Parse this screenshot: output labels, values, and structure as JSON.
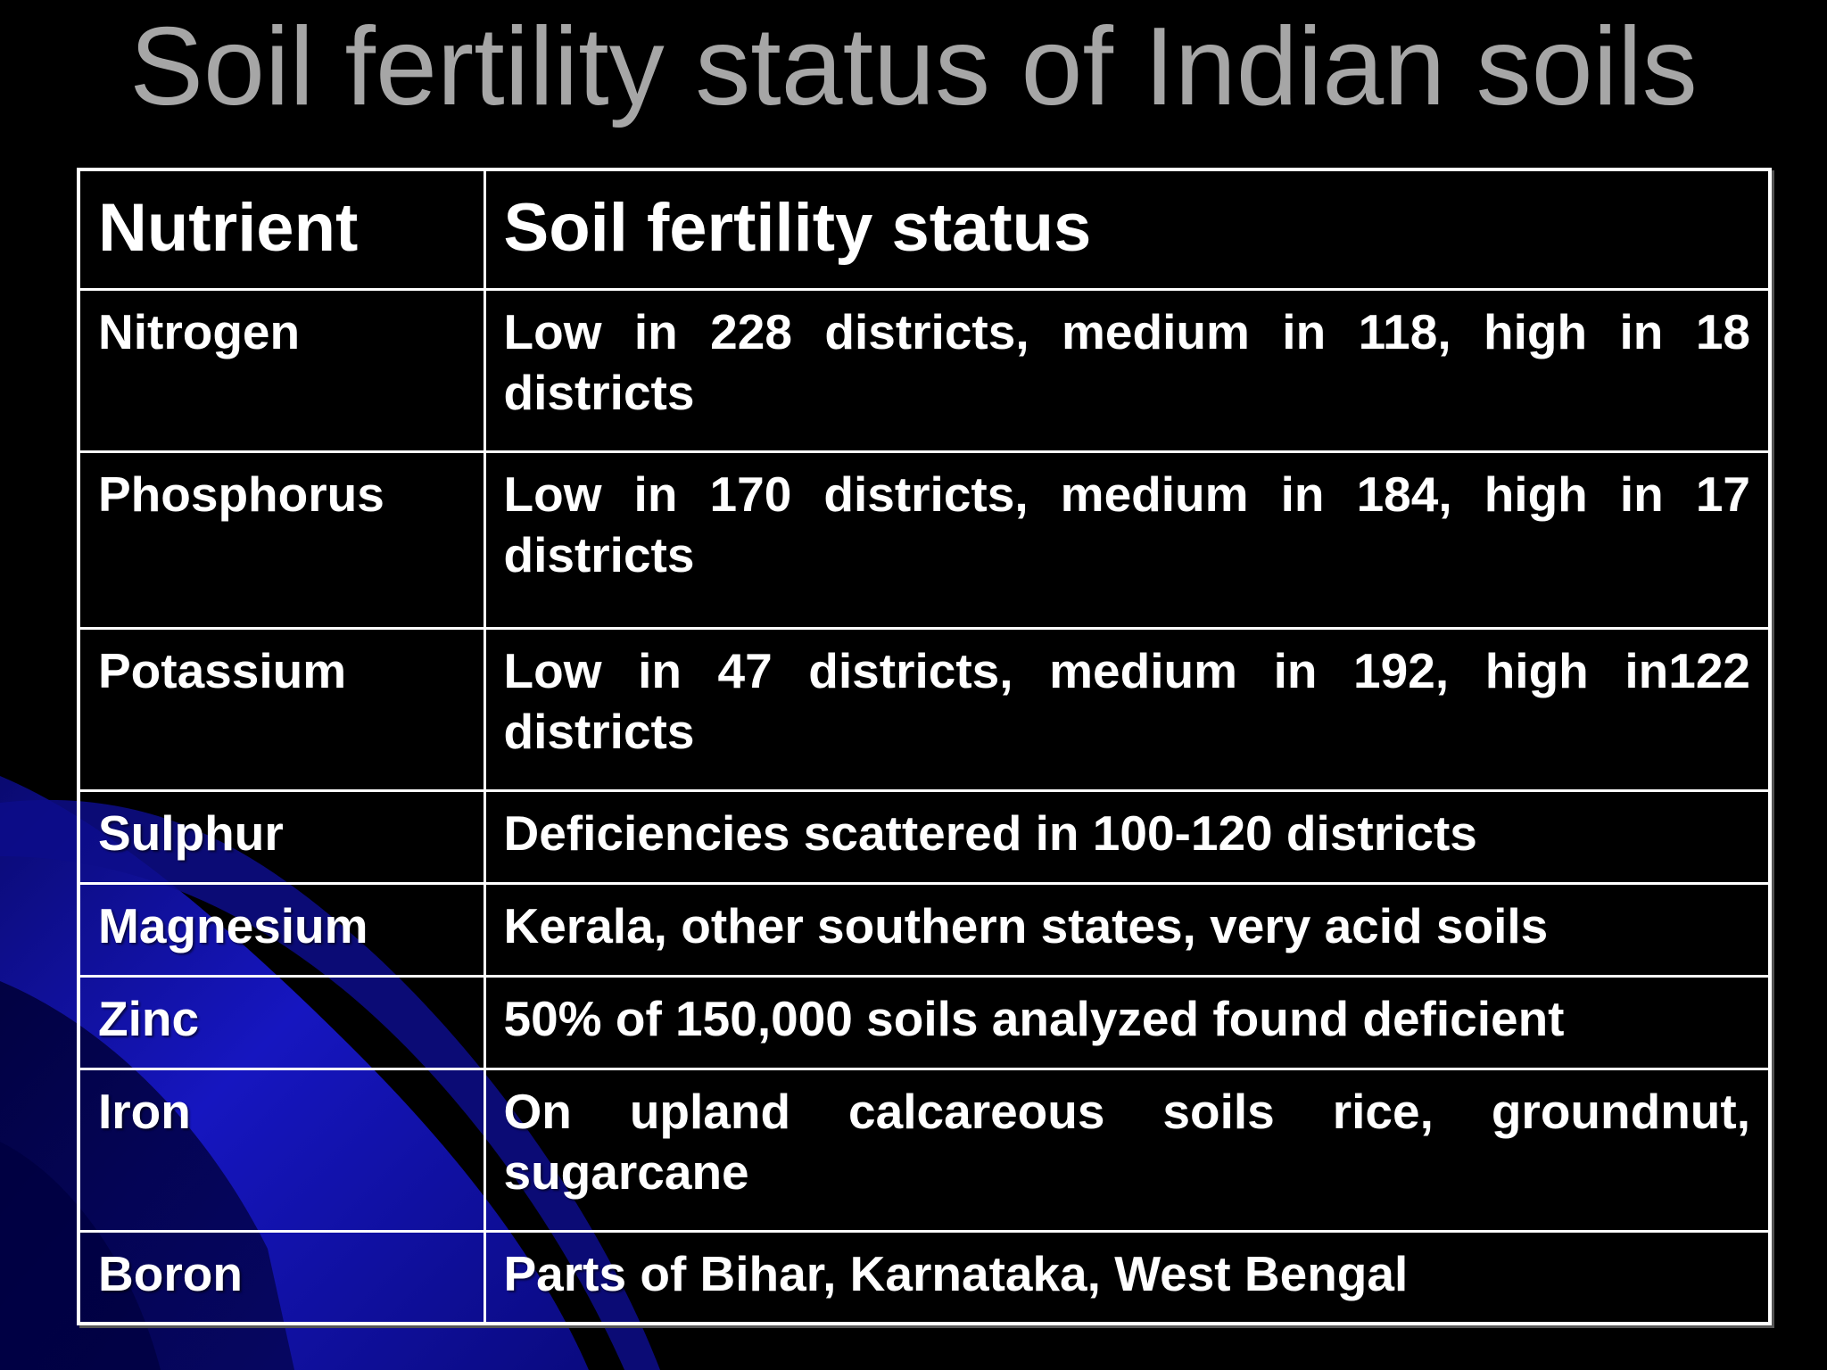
{
  "slide": {
    "title": "Soil fertility status of Indian soils"
  },
  "table": {
    "headers": [
      "Nutrient",
      "Soil fertility status"
    ],
    "rows": [
      {
        "nutrient": "Nitrogen",
        "status": "Low in 228 districts, medium in 118, high in 18 districts"
      },
      {
        "nutrient": "Phosphorus",
        "status": "Low in 170 districts, medium in 184, high in 17 districts"
      },
      {
        "nutrient": "Potassium",
        "status": "Low in 47 districts, medium in 192, high in122 districts"
      },
      {
        "nutrient": "Sulphur",
        "status": "Deficiencies scattered in 100-120 districts"
      },
      {
        "nutrient": "Magnesium",
        "status": "Kerala, other southern states, very acid soils"
      },
      {
        "nutrient": "Zinc",
        "status": "50% of 150,000 soils analyzed found deficient"
      },
      {
        "nutrient": "Iron",
        "status": "On upland calcareous soils rice, groundnut, sugarcane"
      },
      {
        "nutrient": "Boron",
        "status": "Parts of Bihar, Karnataka, West Bengal"
      }
    ]
  },
  "theme": {
    "background": "#000000",
    "title_color": "#a6a6a6",
    "text_color": "#ffffff",
    "accent_blue": "#1414b4"
  }
}
